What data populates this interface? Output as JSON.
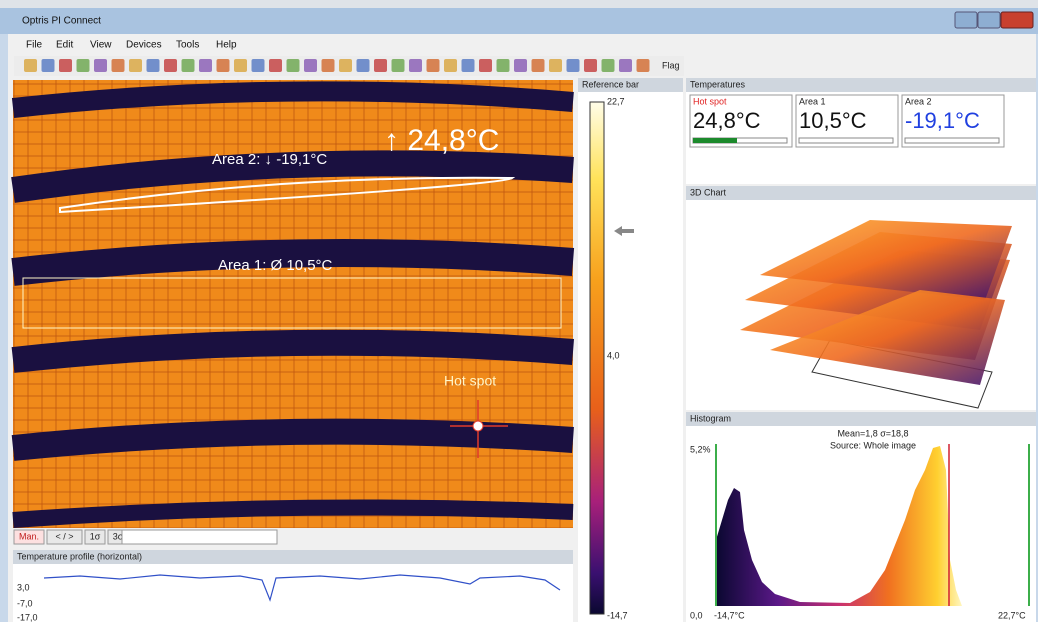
{
  "window": {
    "title": "Optris PI Connect"
  },
  "menu": [
    "File",
    "Edit",
    "View",
    "Devices",
    "Tools",
    "Help"
  ],
  "toolbar": {
    "flag": "Flag"
  },
  "image": {
    "max_label": "↑ 24,8°C",
    "area2": "Area 2: ↓ -19,1°C",
    "area1": "Area 1: Ø 10,5°C",
    "hot_spot": "Hot spot"
  },
  "buttons": [
    "Man.",
    "< / >",
    "1σ",
    "3σ"
  ],
  "profile": {
    "title": "Temperature profile (horizontal)",
    "labels": [
      "3,0",
      "-7,0",
      "-17,0"
    ]
  },
  "reference_bar": {
    "title": "Reference bar",
    "labels": [
      "22,7",
      "4,0",
      "-14,7"
    ]
  },
  "temperatures": {
    "title": "Temperatures",
    "items": [
      {
        "name": "Hot spot",
        "value": "24,8°C"
      },
      {
        "name": "Area 1",
        "value": "10,5°C"
      },
      {
        "name": "Area 2",
        "value": "-19,1°C"
      }
    ]
  },
  "chart3d": {
    "title": "3D Chart"
  },
  "histogram": {
    "title": "Histogram",
    "stats": "Mean=1,8 σ=18,8",
    "source": "Source:  Whole image",
    "y_max": "5,2%",
    "y_min": "0,0",
    "x_min": "-14,7°C",
    "x_max": "22,7°C"
  }
}
